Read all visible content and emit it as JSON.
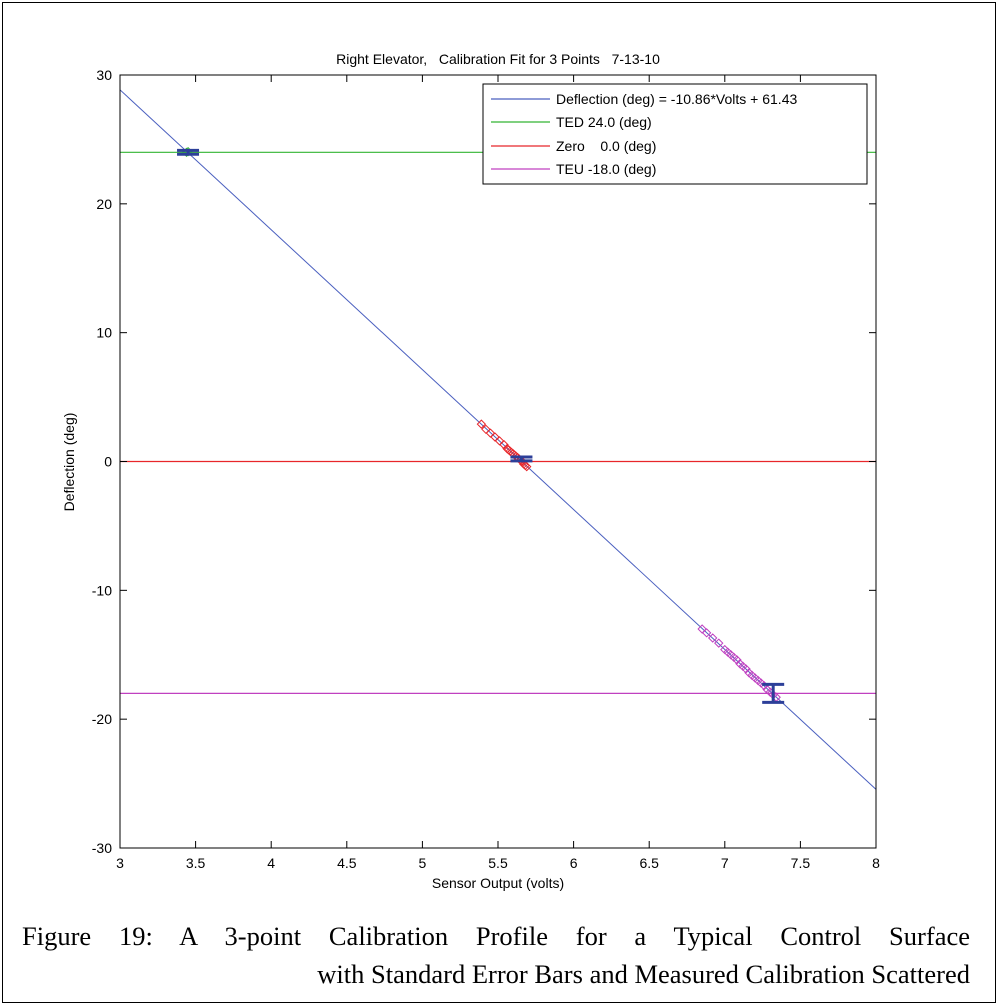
{
  "chart_data": {
    "type": "scatter",
    "title": "Right Elevator,   Calibration Fit for 3 Points   7-13-10",
    "xlabel": "Sensor Output (volts)",
    "ylabel": "Deflection (deg)",
    "xlim": [
      3,
      8
    ],
    "ylim": [
      -30,
      30
    ],
    "xticks": [
      3,
      3.5,
      4,
      4.5,
      5,
      5.5,
      6,
      6.5,
      7,
      7.5,
      8
    ],
    "yticks": [
      -30,
      -20,
      -10,
      0,
      10,
      20,
      30
    ],
    "xtick_labels": [
      "3",
      "3.5",
      "4",
      "4.5",
      "5",
      "5.5",
      "6",
      "6.5",
      "7",
      "7.5",
      "8"
    ],
    "ytick_labels": [
      "-30",
      "-20",
      "-10",
      "0",
      "10",
      "20",
      "30"
    ],
    "grid": false,
    "legend_position": "top-right",
    "fit_line": {
      "name": "Deflection (deg) = -10.86*Volts + 61.43",
      "slope": -10.86,
      "intercept": 61.43,
      "color": "#4a5fbf"
    },
    "reference_lines": [
      {
        "name": "TED 24.0 (deg)",
        "y": 24.0,
        "color": "#33b533"
      },
      {
        "name": "Zero    0.0 (deg)",
        "y": 0.0,
        "color": "#e8262a"
      },
      {
        "name": "TEU -18.0 (deg)",
        "y": -18.0,
        "color": "#c040c0"
      }
    ],
    "scatter_groups": [
      {
        "color": "#33b533",
        "points": [
          [
            3.44,
            24.0
          ],
          [
            3.45,
            24.05
          ]
        ]
      },
      {
        "color": "#e8262a",
        "points": [
          [
            5.39,
            2.9
          ],
          [
            5.42,
            2.5
          ],
          [
            5.45,
            2.2
          ],
          [
            5.48,
            1.9
          ],
          [
            5.51,
            1.6
          ],
          [
            5.54,
            1.3
          ],
          [
            5.56,
            1.0
          ],
          [
            5.57,
            0.9
          ],
          [
            5.58,
            0.8
          ],
          [
            5.59,
            0.7
          ],
          [
            5.6,
            0.6
          ],
          [
            5.61,
            0.5
          ],
          [
            5.62,
            0.4
          ],
          [
            5.63,
            0.3
          ],
          [
            5.64,
            0.2
          ],
          [
            5.65,
            0.1
          ],
          [
            5.66,
            0.0
          ],
          [
            5.67,
            -0.2
          ],
          [
            5.68,
            -0.3
          ],
          [
            5.69,
            -0.4
          ]
        ]
      },
      {
        "color": "#c040c0",
        "points": [
          [
            6.85,
            -13.0
          ],
          [
            6.88,
            -13.3
          ],
          [
            6.92,
            -13.7
          ],
          [
            6.96,
            -14.1
          ],
          [
            7.0,
            -14.6
          ],
          [
            7.02,
            -14.8
          ],
          [
            7.04,
            -15.0
          ],
          [
            7.06,
            -15.2
          ],
          [
            7.08,
            -15.4
          ],
          [
            7.1,
            -15.7
          ],
          [
            7.12,
            -15.9
          ],
          [
            7.14,
            -16.1
          ],
          [
            7.16,
            -16.4
          ],
          [
            7.18,
            -16.6
          ],
          [
            7.2,
            -16.8
          ],
          [
            7.22,
            -17.0
          ],
          [
            7.24,
            -17.2
          ],
          [
            7.26,
            -17.4
          ],
          [
            7.28,
            -17.7
          ],
          [
            7.3,
            -17.9
          ],
          [
            7.32,
            -18.1
          ],
          [
            7.34,
            -18.3
          ]
        ]
      }
    ],
    "error_bars": [
      {
        "x": 3.45,
        "y": 24.0,
        "low": 23.85,
        "high": 24.15,
        "color": "#2c3f99"
      },
      {
        "x": 5.655,
        "y": 0.2,
        "low": 0.05,
        "high": 0.35,
        "color": "#2c3f99"
      },
      {
        "x": 7.32,
        "y": -18.0,
        "low": -18.7,
        "high": -17.3,
        "color": "#2c3f99"
      }
    ]
  },
  "caption": {
    "line1": "Figure 19: A 3-point Calibration Profile for a Typical Control Surface",
    "line2": "with Standard Error Bars and Measured Calibration Scattered"
  }
}
